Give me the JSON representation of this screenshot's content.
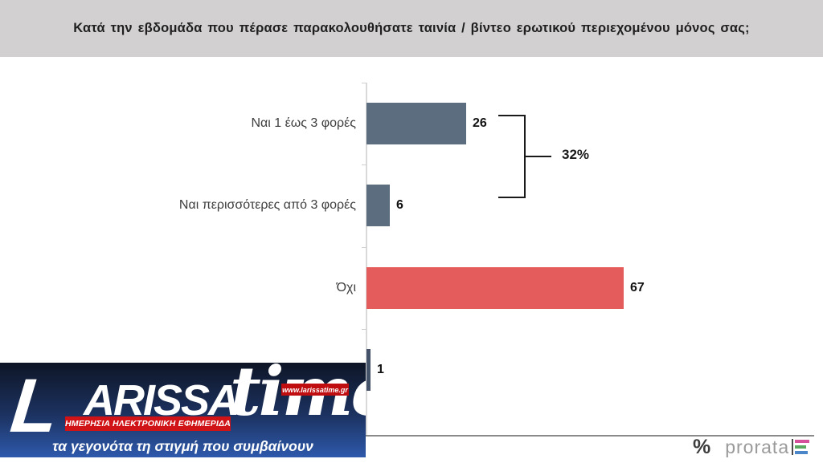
{
  "header": {
    "title": "Κατά την εβδομάδα που πέρασε παρακολουθήσατε ταινία / βίντεο ερωτικού περιεχομένου μόνος σας;"
  },
  "chart_data": {
    "type": "bar",
    "orientation": "horizontal",
    "title": "Κατά την εβδομάδα που πέρασε παρακολουθήσατε ταινία / βίντεο ερωτικού περιεχομένου μόνος σας;",
    "categories": [
      "Ναι 1 έως 3 φορές",
      "Ναι περισσότερες από 3 φορές",
      "Όχι",
      ""
    ],
    "values": [
      26,
      6,
      67,
      1
    ],
    "colors": [
      "#5c6d7f",
      "#5c6d7f",
      "#e45d5c",
      "#44536a"
    ],
    "value_labels": [
      "26",
      "6",
      "67",
      "1"
    ],
    "annotation": {
      "label": "32%",
      "combines": [
        "Ναι 1 έως 3 φορές",
        "Ναι περισσότερες από 3 φορές"
      ]
    },
    "legend": "none",
    "grid": "off",
    "axis_color": "#d9d9d9"
  },
  "watermark": {
    "brand_l": "L",
    "brand_arissa": "ARISSA",
    "brand_time": "time",
    "url": "www.larissatime.gr",
    "banner": "ΗΜΕΡΗΣΙΑ ΗΛΕΚΤΡΟΝΙΚΗ ΕΦΗΜΕΡΙΔΑ",
    "tagline": "τα γεγονότα τη στιγμή που συμβαίνουν",
    "colors": {
      "background_top": "#0e1526",
      "background_bottom": "#2e59ab",
      "red": "#d01317"
    }
  },
  "prorata": {
    "percent_glyph": "%",
    "wordmark": "prorata",
    "icon_bar_colors": [
      "#d4509b",
      "#5aa860",
      "#4a86c8"
    ]
  }
}
